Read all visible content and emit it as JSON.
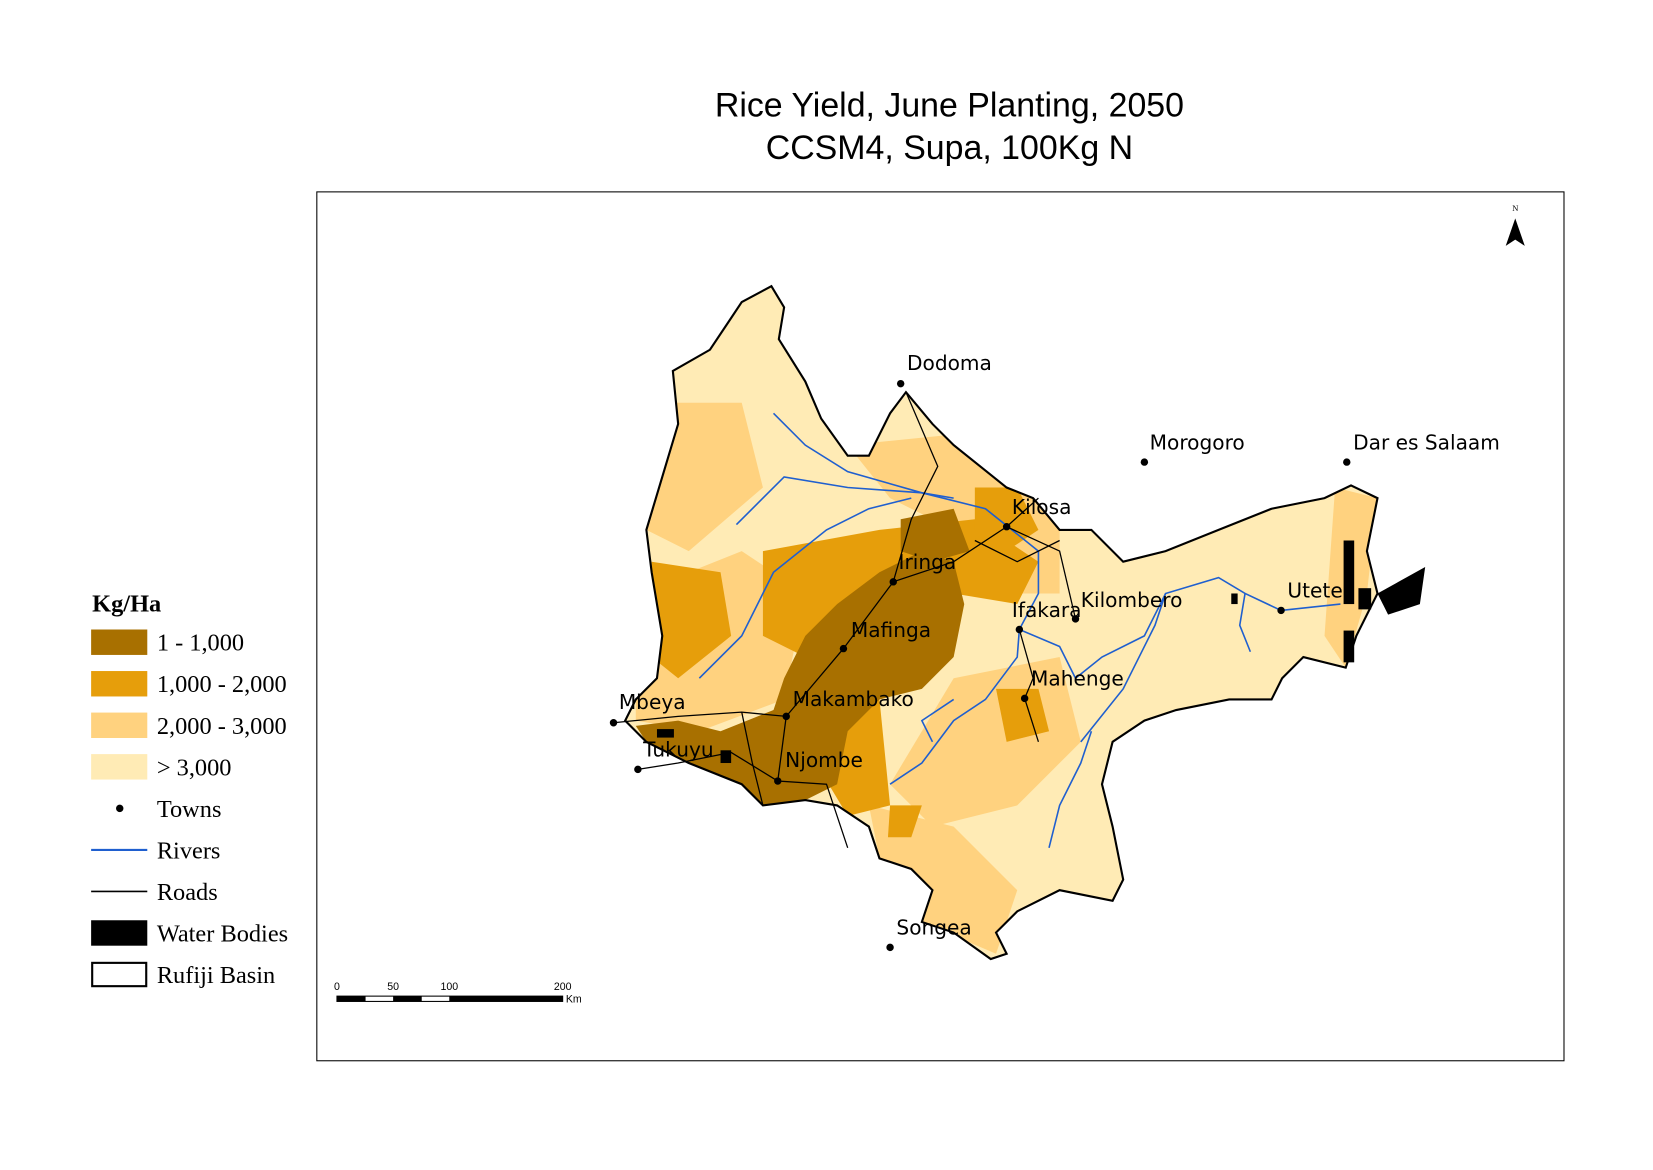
{
  "title": [
    "Rice Yield, June Planting, 2050",
    "CCSM4, Supa, 100Kg N"
  ],
  "legend": {
    "title": "Kg/Ha",
    "items": [
      {
        "label": "1 - 1,000",
        "color": "#a87000"
      },
      {
        "label": "1,000 - 2,000",
        "color": "#e69e0b"
      },
      {
        "label": "2,000 - 3,000",
        "color": "#ffd27f"
      },
      {
        "label": "> 3,000",
        "color": "#ffebb5"
      },
      {
        "label": "Towns"
      },
      {
        "label": "Rivers",
        "color": "#1f5fcf"
      },
      {
        "label": "Roads",
        "color": "#000000"
      },
      {
        "label": "Water Bodies",
        "color": "#000000"
      },
      {
        "label": "Rufiji Basin"
      }
    ]
  },
  "towns": [
    "Dodoma",
    "Morogoro",
    "Dar es Salaam",
    "Kilosa",
    "Iringa",
    "Ifakara",
    "Kilombero",
    "Utete",
    "Mafinga",
    "Mahenge",
    "Mbeya",
    "Makambako",
    "Tukuyu",
    "Njombe",
    "Songea"
  ],
  "scale_bar": {
    "labels": [
      "0",
      "50",
      "100",
      "200"
    ],
    "unit": "Km"
  },
  "north": "N"
}
